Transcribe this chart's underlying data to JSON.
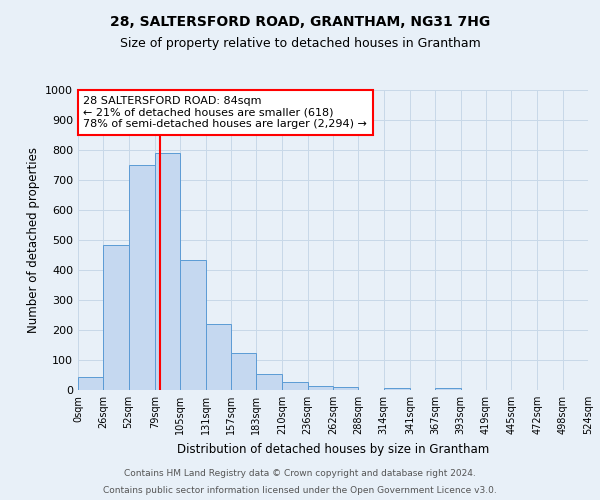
{
  "title": "28, SALTERSFORD ROAD, GRANTHAM, NG31 7HG",
  "subtitle": "Size of property relative to detached houses in Grantham",
  "xlabel": "Distribution of detached houses by size in Grantham",
  "ylabel": "Number of detached properties",
  "bin_edges": [
    0,
    26,
    52,
    79,
    105,
    131,
    157,
    183,
    210,
    236,
    262,
    288,
    314,
    341,
    367,
    393,
    419,
    445,
    472,
    498,
    524
  ],
  "bar_heights": [
    45,
    485,
    750,
    790,
    435,
    220,
    125,
    52,
    28,
    15,
    10,
    0,
    8,
    0,
    8,
    0,
    0,
    0,
    0,
    0
  ],
  "bar_color": "#c5d8f0",
  "bar_edge_color": "#5b9bd5",
  "grid_color": "#c8d8e8",
  "background_color": "#e8f0f8",
  "property_line_x": 84,
  "property_line_color": "red",
  "annotation_line1": "28 SALTERSFORD ROAD: 84sqm",
  "annotation_line2": "← 21% of detached houses are smaller (618)",
  "annotation_line3": "78% of semi-detached houses are larger (2,294) →",
  "ylim": [
    0,
    1000
  ],
  "yticks": [
    0,
    100,
    200,
    300,
    400,
    500,
    600,
    700,
    800,
    900,
    1000
  ],
  "xtick_labels": [
    "0sqm",
    "26sqm",
    "52sqm",
    "79sqm",
    "105sqm",
    "131sqm",
    "157sqm",
    "183sqm",
    "210sqm",
    "236sqm",
    "262sqm",
    "288sqm",
    "314sqm",
    "341sqm",
    "367sqm",
    "393sqm",
    "419sqm",
    "445sqm",
    "472sqm",
    "498sqm",
    "524sqm"
  ],
  "footer_line1": "Contains HM Land Registry data © Crown copyright and database right 2024.",
  "footer_line2": "Contains public sector information licensed under the Open Government Licence v3.0."
}
